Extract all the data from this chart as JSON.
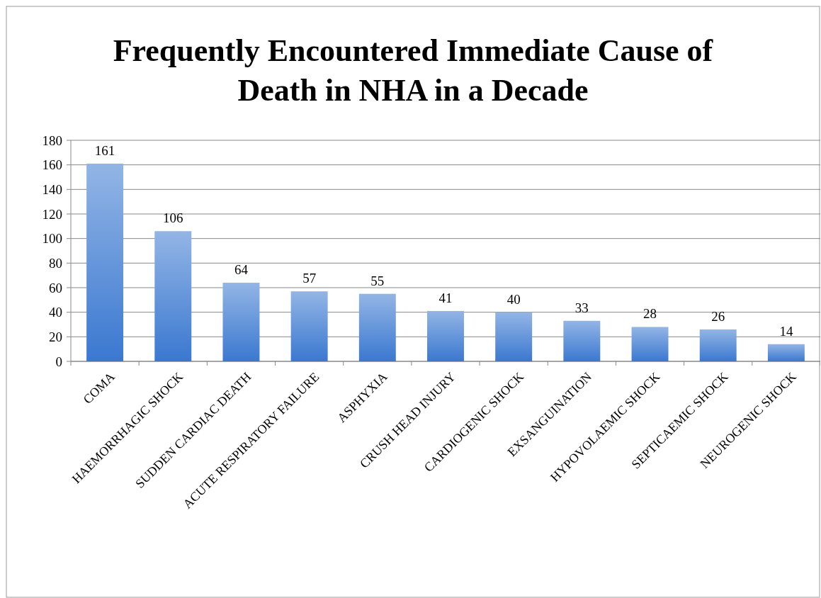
{
  "chart_data": {
    "type": "bar",
    "title": "Frequently Encountered Immediate Cause of Death in NHA in a Decade",
    "categories": [
      "COMA",
      "HAEMORRHAGIC SHOCK",
      "SUDDEN CARDIAC DEATH",
      "ACUTE RESPIRATORY FAILURE",
      "ASPHYXIA",
      "CRUSH HEAD INJURY",
      "CARDIOGENIC SHOCK",
      "EXSANGUINATION",
      "HYPOVOLAEMIC SHOCK",
      "SEPTICAEMIC SHOCK",
      "NEUROGENIC SHOCK"
    ],
    "values": [
      161,
      106,
      64,
      57,
      55,
      41,
      40,
      33,
      28,
      26,
      14
    ],
    "color": "#3a78d0",
    "ylim": [
      0,
      180
    ],
    "yticks": [
      0,
      20,
      40,
      60,
      80,
      100,
      120,
      140,
      160,
      180
    ],
    "grid": "y",
    "data_labels": true
  }
}
